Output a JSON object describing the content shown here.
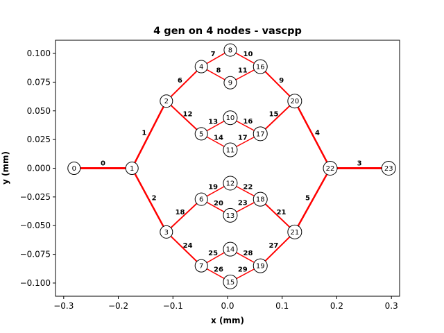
{
  "chart_data": {
    "type": "network",
    "title": "4 gen on 4 nodes - vascpp",
    "xlabel": "x (mm)",
    "ylabel": "y (mm)",
    "xlim": [
      -0.315,
      0.315
    ],
    "ylim": [
      -0.1115,
      0.1115
    ],
    "xticks": [
      -0.3,
      -0.2,
      -0.1,
      0.0,
      0.1,
      0.2,
      0.3
    ],
    "xtick_labels": [
      "−0.3",
      "−0.2",
      "−0.1",
      "0.0",
      "0.1",
      "0.2",
      "0.3"
    ],
    "yticks": [
      -0.1,
      -0.075,
      -0.05,
      -0.025,
      0.0,
      0.025,
      0.05,
      0.075,
      0.1
    ],
    "ytick_labels": [
      "−0.100",
      "−0.075",
      "−0.050",
      "−0.025",
      "0.000",
      "0.025",
      "0.050",
      "0.075",
      "0.100"
    ],
    "edge_color": "#ff0000",
    "nodes": [
      {
        "id": "0",
        "x": -0.281,
        "y": 0.0,
        "r": 9
      },
      {
        "id": "1",
        "x": -0.175,
        "y": 0.0,
        "r": 9
      },
      {
        "id": "2",
        "x": -0.112,
        "y": 0.0585,
        "r": 9
      },
      {
        "id": "3",
        "x": -0.112,
        "y": -0.0555,
        "r": 9
      },
      {
        "id": "4",
        "x": -0.048,
        "y": 0.0885,
        "r": 9
      },
      {
        "id": "5",
        "x": -0.048,
        "y": 0.03,
        "r": 9
      },
      {
        "id": "6",
        "x": -0.048,
        "y": -0.027,
        "r": 9
      },
      {
        "id": "7",
        "x": -0.048,
        "y": -0.085,
        "r": 9
      },
      {
        "id": "8",
        "x": 0.005,
        "y": 0.103,
        "r": 9
      },
      {
        "id": "9",
        "x": 0.005,
        "y": 0.0745,
        "r": 9
      },
      {
        "id": "10",
        "x": 0.005,
        "y": 0.044,
        "r": 10
      },
      {
        "id": "11",
        "x": 0.005,
        "y": 0.016,
        "r": 10
      },
      {
        "id": "12",
        "x": 0.005,
        "y": -0.013,
        "r": 10
      },
      {
        "id": "13",
        "x": 0.005,
        "y": -0.041,
        "r": 10
      },
      {
        "id": "14",
        "x": 0.005,
        "y": -0.0705,
        "r": 10
      },
      {
        "id": "15",
        "x": 0.005,
        "y": -0.099,
        "r": 10
      },
      {
        "id": "16",
        "x": 0.06,
        "y": 0.0885,
        "r": 10
      },
      {
        "id": "17",
        "x": 0.06,
        "y": 0.03,
        "r": 10
      },
      {
        "id": "18",
        "x": 0.06,
        "y": -0.027,
        "r": 10
      },
      {
        "id": "19",
        "x": 0.06,
        "y": -0.085,
        "r": 10
      },
      {
        "id": "20",
        "x": 0.123,
        "y": 0.0585,
        "r": 10
      },
      {
        "id": "21",
        "x": 0.123,
        "y": -0.0555,
        "r": 10
      },
      {
        "id": "22",
        "x": 0.188,
        "y": 0.0,
        "r": 10
      },
      {
        "id": "23",
        "x": 0.295,
        "y": 0.0,
        "r": 10
      }
    ],
    "edges": [
      {
        "label": "0",
        "from": "0",
        "to": "1",
        "width": 3
      },
      {
        "label": "1",
        "from": "1",
        "to": "2",
        "width": 2.5
      },
      {
        "label": "2",
        "from": "1",
        "to": "3",
        "width": 2.5
      },
      {
        "label": "3",
        "from": "22",
        "to": "23",
        "width": 3
      },
      {
        "label": "4",
        "from": "20",
        "to": "22",
        "width": 2.5
      },
      {
        "label": "5",
        "from": "21",
        "to": "22",
        "width": 2.5
      },
      {
        "label": "6",
        "from": "2",
        "to": "4",
        "width": 2
      },
      {
        "label": "7",
        "from": "4",
        "to": "8",
        "width": 1.5
      },
      {
        "label": "8",
        "from": "4",
        "to": "9",
        "width": 1.5
      },
      {
        "label": "9",
        "from": "16",
        "to": "20",
        "width": 2
      },
      {
        "label": "10",
        "from": "8",
        "to": "16",
        "width": 1.5
      },
      {
        "label": "11",
        "from": "9",
        "to": "16",
        "width": 1.5
      },
      {
        "label": "12",
        "from": "2",
        "to": "5",
        "width": 2
      },
      {
        "label": "13",
        "from": "5",
        "to": "10",
        "width": 1.5
      },
      {
        "label": "14",
        "from": "5",
        "to": "11",
        "width": 1.5
      },
      {
        "label": "15",
        "from": "17",
        "to": "20",
        "width": 2
      },
      {
        "label": "16",
        "from": "10",
        "to": "17",
        "width": 1.5
      },
      {
        "label": "17",
        "from": "11",
        "to": "17",
        "width": 1.5
      },
      {
        "label": "18",
        "from": "3",
        "to": "6",
        "width": 2
      },
      {
        "label": "19",
        "from": "6",
        "to": "12",
        "width": 1.5
      },
      {
        "label": "20",
        "from": "6",
        "to": "13",
        "width": 1.5
      },
      {
        "label": "21",
        "from": "18",
        "to": "21",
        "width": 2
      },
      {
        "label": "22",
        "from": "12",
        "to": "18",
        "width": 1.5
      },
      {
        "label": "23",
        "from": "13",
        "to": "18",
        "width": 1.5
      },
      {
        "label": "24",
        "from": "3",
        "to": "7",
        "width": 2
      },
      {
        "label": "25",
        "from": "7",
        "to": "14",
        "width": 1.5
      },
      {
        "label": "26",
        "from": "7",
        "to": "15",
        "width": 1.5
      },
      {
        "label": "27",
        "from": "19",
        "to": "21",
        "width": 2
      },
      {
        "label": "28",
        "from": "14",
        "to": "19",
        "width": 1.5
      },
      {
        "label": "29",
        "from": "15",
        "to": "19",
        "width": 1.5
      }
    ]
  }
}
